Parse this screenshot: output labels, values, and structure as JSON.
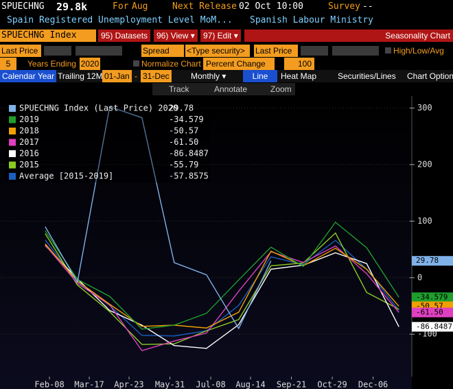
{
  "header": {
    "ticker": "SPUECHNG",
    "value": "29.8k",
    "for_label": "For",
    "for_value": "Aug",
    "next_label": "Next Release",
    "next_value": "02 Oct 10:00",
    "survey_label": "Survey",
    "survey_value": "--",
    "description": "Spain Registered Unemployment Level MoM...",
    "source": "Spanish Labour Ministry"
  },
  "menu": {
    "security": "SPUECHNG Index",
    "buttons": [
      "95) Datasets",
      "96) View ▾",
      "97) Edit ▾"
    ],
    "title": "Seasonality Chart"
  },
  "fields": {
    "field1": "Last Price",
    "spread": "Spread",
    "security": "<Type security>",
    "field2": "Last Price",
    "hla": "High/Low/Avg"
  },
  "range": {
    "years": "5",
    "years_label": "Years Ending",
    "end_year": "2020",
    "normalize": "Normalize Chart",
    "mode": "Percent Change",
    "base": "100"
  },
  "period": {
    "calendar": "Calendar Year",
    "trailing": "Trailing 12M",
    "start": "01-Jan",
    "dash": "-",
    "end": "31-Dec",
    "freq": "Monthly ▾",
    "line": "Line",
    "heatmap": "Heat Map",
    "securities": "Securities/Lines",
    "options": "Chart Options"
  },
  "tools": [
    "Track",
    "Annotate",
    "Zoom"
  ],
  "chart_data": {
    "type": "line",
    "x": [
      35,
      65,
      95,
      125,
      155,
      185,
      215,
      245,
      275,
      305,
      334,
      364
    ],
    "xlim": [
      -7,
      376
    ],
    "xticks": [
      {
        "value": 39,
        "label": "Feb-08"
      },
      {
        "value": 76,
        "label": "Mar-17"
      },
      {
        "value": 113,
        "label": "Apr-23"
      },
      {
        "value": 151,
        "label": "May-31"
      },
      {
        "value": 189,
        "label": "Jul-08"
      },
      {
        "value": 226,
        "label": "Aug-14"
      },
      {
        "value": 264,
        "label": "Sep-21"
      },
      {
        "value": 302,
        "label": "Oct-29"
      },
      {
        "value": 340,
        "label": "Dec-06"
      }
    ],
    "ylim": [
      -175,
      320
    ],
    "yticks": [
      -100,
      0,
      100,
      200,
      300
    ],
    "series": [
      {
        "name": "SPUECHNG Index (Last Price) 2020",
        "color": "#7fb2e8",
        "values": [
          90.2,
          -7.8,
          302.4,
          282.9,
          26.6,
          5.1,
          -89.8,
          29.78,
          null,
          null,
          null,
          null
        ]
      },
      {
        "name": "2019",
        "color": "#1f9e2e",
        "values": [
          83,
          -3,
          -33,
          -91,
          -84,
          -63,
          -4,
          54,
          20,
          98,
          53,
          -34.579
        ]
      },
      {
        "name": "2018",
        "color": "#f0a000",
        "values": [
          60,
          -6,
          -47,
          -86,
          -84,
          -89,
          -61,
          47,
          21,
          52,
          15,
          -50.57
        ]
      },
      {
        "name": "2017",
        "color": "#e040c0",
        "values": [
          58,
          -10,
          -48,
          -129,
          -112,
          -98,
          -24,
          46,
          27,
          56,
          7,
          -61.5
        ],
        "value_labels": [
          null,
          null,
          null,
          null,
          null,
          null,
          null,
          null,
          null,
          null,
          null,
          "-61.50"
        ]
      },
      {
        "name": "2016",
        "color": "#ffffff",
        "values": [
          57,
          -2,
          -58,
          -84,
          -120,
          -125,
          -83,
          15,
          22,
          44,
          25,
          -86.8487
        ]
      },
      {
        "name": "2015",
        "color": "#8ccc20",
        "values": [
          78,
          -13,
          -60,
          -118,
          -117,
          -94,
          -74,
          21,
          26,
          79,
          -26,
          -55.79
        ]
      },
      {
        "name": "Average [2015-2019]",
        "color": "#1a5fc0",
        "values": [
          67,
          -7,
          -49,
          -102,
          -103,
          -94,
          -49,
          37,
          23,
          66,
          15,
          -57.8575
        ]
      }
    ]
  }
}
